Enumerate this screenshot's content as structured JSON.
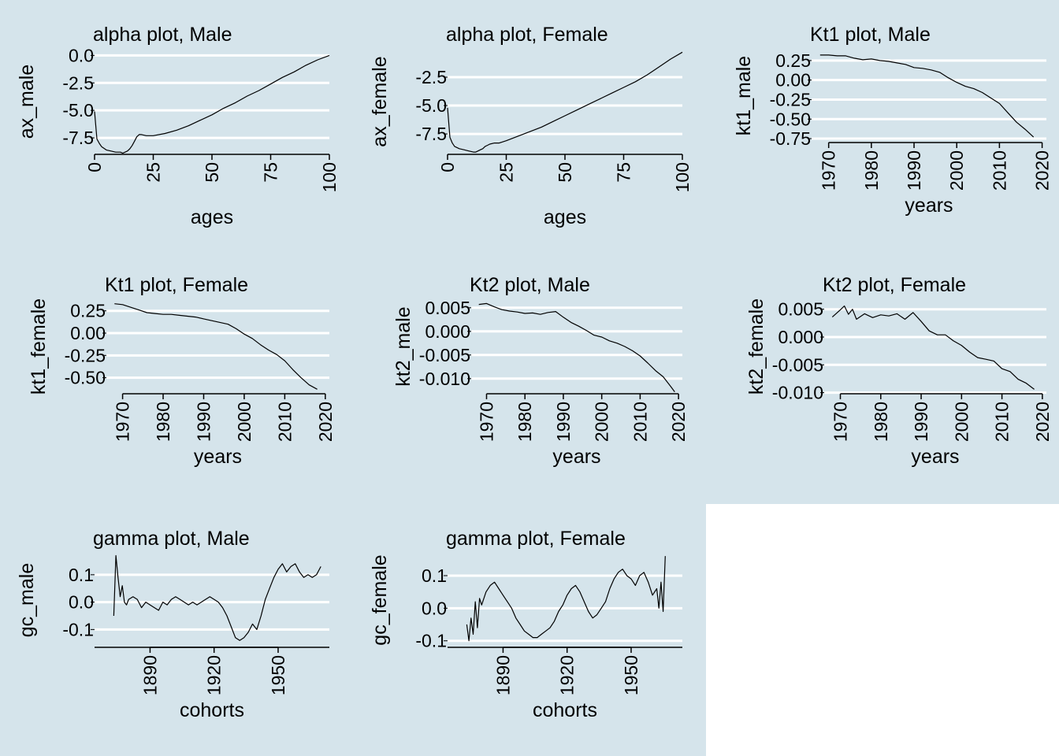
{
  "background_color": "#d5e4eb",
  "grid_color": "#ffffff",
  "line_color": "#000000",
  "chart_data": [
    {
      "type": "line",
      "title": "alpha plot, Male",
      "xlabel": "ages",
      "ylabel": "ax_male",
      "xlim": [
        0,
        100
      ],
      "ylim": [
        -9.0,
        0.6
      ],
      "xticks": [
        0,
        25,
        50,
        75,
        100
      ],
      "yticks": [
        0.0,
        -2.5,
        -5.0,
        -7.5
      ],
      "yticklabels": [
        "0.0",
        "-2.5",
        "-5.0",
        "-7.5"
      ],
      "grid": "horizontal",
      "x": [
        0,
        1,
        2,
        3,
        5,
        7,
        9,
        11,
        12,
        13,
        14,
        15,
        16,
        17,
        18,
        19,
        20,
        22,
        25,
        30,
        35,
        40,
        45,
        50,
        55,
        60,
        65,
        70,
        75,
        80,
        85,
        90,
        95,
        100
      ],
      "values": [
        -5.1,
        -7.6,
        -8.0,
        -8.3,
        -8.6,
        -8.7,
        -8.8,
        -8.8,
        -8.9,
        -8.8,
        -8.7,
        -8.5,
        -8.2,
        -7.8,
        -7.4,
        -7.2,
        -7.2,
        -7.3,
        -7.3,
        -7.1,
        -6.8,
        -6.4,
        -5.9,
        -5.4,
        -4.8,
        -4.3,
        -3.7,
        -3.2,
        -2.6,
        -2.0,
        -1.5,
        -0.9,
        -0.4,
        0.0
      ]
    },
    {
      "type": "line",
      "title": "alpha plot, Female",
      "xlabel": "ages",
      "ylabel": "ax_female",
      "xlim": [
        0,
        100
      ],
      "ylim": [
        -9.3,
        0.0
      ],
      "xticks": [
        0,
        25,
        50,
        75,
        100
      ],
      "yticks": [
        -2.5,
        -5.0,
        -7.5
      ],
      "yticklabels": [
        "-2.5",
        "-5.0",
        "-7.5"
      ],
      "grid": "horizontal",
      "x": [
        0,
        1,
        2,
        3,
        5,
        7,
        9,
        11,
        12,
        13,
        14,
        15,
        16,
        17,
        18,
        20,
        22,
        25,
        30,
        35,
        40,
        45,
        50,
        55,
        60,
        65,
        70,
        75,
        80,
        85,
        90,
        95,
        100
      ],
      "values": [
        -5.2,
        -7.8,
        -8.3,
        -8.6,
        -8.8,
        -8.9,
        -9.0,
        -9.1,
        -9.1,
        -9.0,
        -8.9,
        -8.8,
        -8.6,
        -8.5,
        -8.4,
        -8.3,
        -8.3,
        -8.1,
        -7.7,
        -7.3,
        -6.9,
        -6.4,
        -5.9,
        -5.4,
        -4.9,
        -4.4,
        -3.9,
        -3.4,
        -2.9,
        -2.3,
        -1.6,
        -0.9,
        -0.3
      ]
    },
    {
      "type": "line",
      "title": "Kt1 plot, Male",
      "xlabel": "years",
      "ylabel": "kt1_male",
      "xlim": [
        1966,
        2021
      ],
      "ylim": [
        -0.8,
        0.4
      ],
      "xticks": [
        1970,
        1980,
        1990,
        2000,
        2010,
        2020
      ],
      "yticks": [
        0.25,
        0.0,
        -0.25,
        -0.5,
        -0.75
      ],
      "yticklabels": [
        "0.25",
        "0.00",
        "-0.25",
        "-0.50",
        "-0.75"
      ],
      "grid": "horizontal",
      "x": [
        1968,
        1970,
        1972,
        1974,
        1976,
        1978,
        1980,
        1982,
        1984,
        1986,
        1988,
        1990,
        1992,
        1994,
        1996,
        1998,
        2000,
        2002,
        2004,
        2006,
        2008,
        2010,
        2012,
        2014,
        2016,
        2018
      ],
      "values": [
        0.32,
        0.32,
        0.31,
        0.31,
        0.28,
        0.26,
        0.27,
        0.25,
        0.24,
        0.22,
        0.2,
        0.16,
        0.15,
        0.13,
        0.1,
        0.03,
        -0.03,
        -0.08,
        -0.11,
        -0.16,
        -0.23,
        -0.3,
        -0.42,
        -0.54,
        -0.63,
        -0.73
      ]
    },
    {
      "type": "line",
      "title": "Kt1 plot, Female",
      "xlabel": "years",
      "ylabel": "kt1_female",
      "xlim": [
        1966,
        2021
      ],
      "ylim": [
        -0.68,
        0.38
      ],
      "xticks": [
        1970,
        1980,
        1990,
        2000,
        2010,
        2020
      ],
      "yticks": [
        0.25,
        0.0,
        -0.25,
        -0.5
      ],
      "yticklabels": [
        "0.25",
        "0.00",
        "-0.25",
        "-0.50"
      ],
      "grid": "horizontal",
      "x": [
        1968,
        1970,
        1972,
        1974,
        1976,
        1978,
        1980,
        1982,
        1984,
        1986,
        1988,
        1990,
        1992,
        1994,
        1996,
        1998,
        2000,
        2002,
        2004,
        2006,
        2008,
        2010,
        2012,
        2014,
        2016,
        2018
      ],
      "values": [
        0.33,
        0.32,
        0.29,
        0.26,
        0.23,
        0.22,
        0.21,
        0.21,
        0.2,
        0.19,
        0.18,
        0.16,
        0.14,
        0.12,
        0.1,
        0.05,
        -0.01,
        -0.06,
        -0.13,
        -0.19,
        -0.24,
        -0.31,
        -0.41,
        -0.5,
        -0.58,
        -0.63
      ]
    },
    {
      "type": "line",
      "title": "Kt2 plot, Male",
      "xlabel": "years",
      "ylabel": "kt2_male",
      "xlim": [
        1966,
        2021
      ],
      "ylim": [
        -0.0132,
        0.0068
      ],
      "xticks": [
        1970,
        1980,
        1990,
        2000,
        2010,
        2020
      ],
      "yticks": [
        0.005,
        0.0,
        -0.005,
        -0.01
      ],
      "yticklabels": [
        "0.005",
        "0.000",
        "-0.005",
        "-0.010"
      ],
      "grid": "horizontal",
      "x": [
        1968,
        1970,
        1972,
        1974,
        1976,
        1978,
        1980,
        1982,
        1984,
        1986,
        1988,
        1990,
        1992,
        1994,
        1996,
        1998,
        2000,
        2002,
        2004,
        2006,
        2008,
        2010,
        2012,
        2014,
        2016,
        2018,
        2019
      ],
      "values": [
        0.0057,
        0.0059,
        0.0052,
        0.0046,
        0.0043,
        0.0041,
        0.0038,
        0.0039,
        0.0036,
        0.004,
        0.0042,
        0.003,
        0.0019,
        0.0011,
        0.0002,
        -0.0008,
        -0.0012,
        -0.002,
        -0.0025,
        -0.0032,
        -0.0041,
        -0.0052,
        -0.0067,
        -0.0083,
        -0.0096,
        -0.0117,
        -0.0128
      ]
    },
    {
      "type": "line",
      "title": "Kt2 plot, Female",
      "xlabel": "years",
      "ylabel": "kt2_female",
      "xlim": [
        1966,
        2021
      ],
      "ylim": [
        -0.0102,
        0.0068
      ],
      "xticks": [
        1970,
        1980,
        1990,
        2000,
        2010,
        2020
      ],
      "yticks": [
        0.005,
        0.0,
        -0.005,
        -0.01
      ],
      "yticklabels": [
        "0.005",
        "0.000",
        "-0.005",
        "-0.010"
      ],
      "grid": "horizontal",
      "x": [
        1968,
        1970,
        1971,
        1972,
        1973,
        1974,
        1976,
        1978,
        1980,
        1982,
        1984,
        1986,
        1988,
        1990,
        1992,
        1994,
        1996,
        1998,
        2000,
        2002,
        2004,
        2006,
        2008,
        2010,
        2012,
        2014,
        2016,
        2018
      ],
      "values": [
        0.0036,
        0.0049,
        0.0056,
        0.0041,
        0.005,
        0.0032,
        0.0042,
        0.0035,
        0.004,
        0.0038,
        0.0042,
        0.0032,
        0.0044,
        0.0028,
        0.0011,
        0.0004,
        0.0004,
        -0.0007,
        -0.0015,
        -0.0027,
        -0.0037,
        -0.004,
        -0.0043,
        -0.0057,
        -0.0062,
        -0.0076,
        -0.0083,
        -0.0094
      ]
    },
    {
      "type": "line",
      "title": "gamma plot, Male",
      "xlabel": "cohorts",
      "ylabel": "gc_male",
      "xlim": [
        1864,
        1974
      ],
      "ylim": [
        -0.165,
        0.18
      ],
      "xticks": [
        1890,
        1920,
        1950
      ],
      "yticks": [
        0.1,
        0.0,
        -0.1
      ],
      "yticklabels": [
        "0.1",
        "0.0",
        "-0.1"
      ],
      "grid": "horizontal",
      "x": [
        1873,
        1874,
        1875,
        1876,
        1877,
        1878,
        1879,
        1880,
        1882,
        1884,
        1886,
        1888,
        1890,
        1892,
        1894,
        1896,
        1898,
        1900,
        1902,
        1904,
        1906,
        1908,
        1910,
        1912,
        1914,
        1916,
        1918,
        1920,
        1922,
        1924,
        1926,
        1928,
        1930,
        1932,
        1934,
        1936,
        1938,
        1940,
        1942,
        1944,
        1946,
        1948,
        1950,
        1952,
        1954,
        1956,
        1958,
        1960,
        1962,
        1964,
        1966,
        1968,
        1970
      ],
      "values": [
        -0.05,
        0.17,
        0.09,
        0.02,
        0.06,
        0.0,
        -0.01,
        0.01,
        0.02,
        0.01,
        -0.02,
        0.0,
        -0.01,
        -0.02,
        -0.03,
        0.0,
        -0.01,
        0.01,
        0.02,
        0.01,
        0.0,
        -0.01,
        0.0,
        -0.01,
        0.0,
        0.01,
        0.02,
        0.01,
        0.0,
        -0.02,
        -0.05,
        -0.09,
        -0.13,
        -0.14,
        -0.13,
        -0.11,
        -0.08,
        -0.1,
        -0.05,
        0.01,
        0.05,
        0.09,
        0.12,
        0.14,
        0.11,
        0.13,
        0.14,
        0.11,
        0.09,
        0.1,
        0.09,
        0.1,
        0.13
      ]
    },
    {
      "type": "line",
      "title": "gamma plot, Female",
      "xlabel": "cohorts",
      "ylabel": "gc_female",
      "xlim": [
        1864,
        1974
      ],
      "ylim": [
        -0.12,
        0.17
      ],
      "xticks": [
        1890,
        1920,
        1950
      ],
      "yticks": [
        0.1,
        0.0,
        -0.1
      ],
      "yticklabels": [
        "0.1",
        "0.0",
        "-0.1"
      ],
      "grid": "horizontal",
      "x": [
        1873,
        1874,
        1875,
        1876,
        1877,
        1878,
        1879,
        1880,
        1882,
        1884,
        1886,
        1888,
        1890,
        1892,
        1894,
        1896,
        1898,
        1900,
        1902,
        1904,
        1906,
        1908,
        1910,
        1912,
        1914,
        1916,
        1918,
        1920,
        1922,
        1924,
        1926,
        1928,
        1930,
        1932,
        1934,
        1936,
        1938,
        1940,
        1942,
        1944,
        1946,
        1948,
        1950,
        1952,
        1954,
        1956,
        1958,
        1960,
        1962,
        1963,
        1964,
        1965,
        1966
      ],
      "values": [
        -0.05,
        -0.1,
        -0.03,
        -0.08,
        0.02,
        -0.06,
        0.03,
        0.01,
        0.05,
        0.07,
        0.08,
        0.06,
        0.04,
        0.02,
        0.0,
        -0.03,
        -0.05,
        -0.07,
        -0.08,
        -0.09,
        -0.09,
        -0.08,
        -0.07,
        -0.06,
        -0.04,
        -0.01,
        0.01,
        0.04,
        0.06,
        0.07,
        0.05,
        0.02,
        -0.01,
        -0.03,
        -0.02,
        0.0,
        0.02,
        0.06,
        0.09,
        0.11,
        0.12,
        0.1,
        0.09,
        0.07,
        0.1,
        0.11,
        0.08,
        0.04,
        0.06,
        0.0,
        0.08,
        -0.01,
        0.16
      ]
    }
  ]
}
